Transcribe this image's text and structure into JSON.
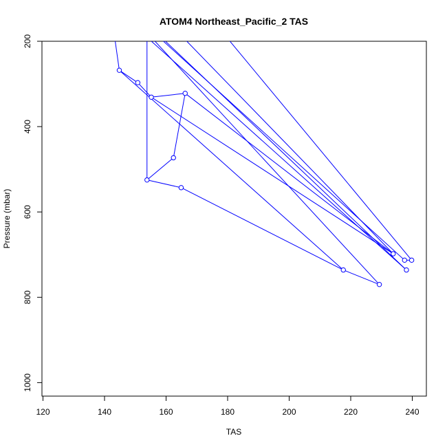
{
  "chart_data": {
    "type": "line",
    "title": "ATOM4 Northeast_Pacific_2 TAS",
    "xlabel": "TAS",
    "ylabel": "Pressure (mbar)",
    "xlim": [
      120,
      245
    ],
    "ylim": [
      1030,
      200
    ],
    "y_reversed": true,
    "x_ticks": [
      120,
      140,
      160,
      180,
      200,
      220,
      240
    ],
    "y_ticks": [
      200,
      400,
      600,
      800,
      1000
    ],
    "series_color": "#0000ff",
    "series": [
      {
        "x": [
          144.8,
          150.8,
          155.2,
          166.2,
          162.4,
          153.8,
          164.9,
          217.6,
          229.3,
          237.5,
          239.8,
          233.8,
          238.1
        ],
        "y": [
          268,
          297,
          331,
          322,
          473,
          525,
          543,
          736,
          770,
          713,
          713,
          698,
          736
        ]
      }
    ],
    "lines_out_of_frame": [
      {
        "x": [
          142.5,
          144.8
        ],
        "y": [
          150,
          268
        ]
      },
      {
        "x": [
          144.8,
          150.8
        ],
        "y": [
          268,
          297
        ]
      },
      {
        "x": [
          150.8,
          155.2
        ],
        "y": [
          297,
          331
        ]
      },
      {
        "x": [
          147.5,
          238.1
        ],
        "y": [
          150,
          736
        ]
      },
      {
        "x": [
          155.2,
          166.2
        ],
        "y": [
          331,
          322
        ]
      },
      {
        "x": [
          166.2,
          162.4
        ],
        "y": [
          322,
          473
        ]
      },
      {
        "x": [
          162.4,
          153.8
        ],
        "y": [
          473,
          525
        ]
      },
      {
        "x": [
          153.8,
          153.8
        ],
        "y": [
          150,
          525
        ]
      },
      {
        "x": [
          153.8,
          164.9
        ],
        "y": [
          525,
          543
        ]
      },
      {
        "x": [
          164.9,
          217.6
        ],
        "y": [
          543,
          736
        ]
      },
      {
        "x": [
          217.6,
          229.3
        ],
        "y": [
          736,
          770
        ]
      },
      {
        "x": [
          229.3,
          150.0
        ],
        "y": [
          770,
          150
        ]
      },
      {
        "x": [
          237.5,
          239.8
        ],
        "y": [
          713,
          713
        ]
      },
      {
        "x": [
          239.8,
          175.0
        ],
        "y": [
          713,
          150
        ]
      },
      {
        "x": [
          233.8,
          160.0
        ],
        "y": [
          698,
          150
        ]
      },
      {
        "x": [
          238.1,
          152.5
        ],
        "y": [
          736,
          150
        ]
      },
      {
        "x": [
          151.5,
          237.5
        ],
        "y": [
          150,
          713
        ]
      },
      {
        "x": [
          155.2,
          233.8
        ],
        "y": [
          331,
          698
        ]
      },
      {
        "x": [
          166.2,
          233.8
        ],
        "y": [
          322,
          698
        ]
      },
      {
        "x": [
          144.8,
          217.6
        ],
        "y": [
          268,
          736
        ]
      }
    ]
  }
}
